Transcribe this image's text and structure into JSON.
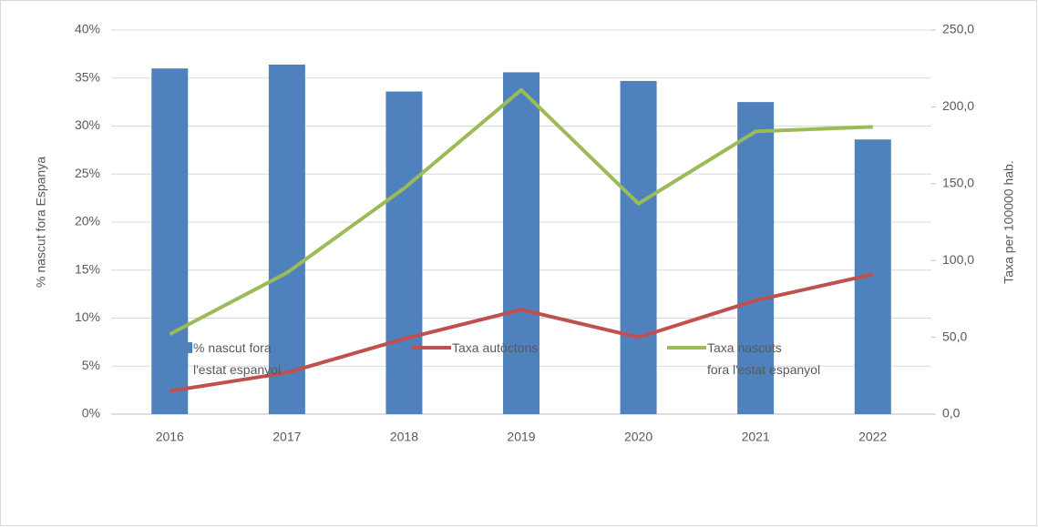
{
  "chart_data": {
    "type": "bar",
    "categories": [
      "2016",
      "2017",
      "2018",
      "2019",
      "2020",
      "2021",
      "2022"
    ],
    "y_label": "% nascut fora Espanya",
    "y2_label": "Taxa per 100000 hab.",
    "ylim": [
      0,
      40
    ],
    "yticks": [
      {
        "value": 0,
        "label": "0%"
      },
      {
        "value": 5,
        "label": "5%"
      },
      {
        "value": 10,
        "label": "10%"
      },
      {
        "value": 15,
        "label": "15%"
      },
      {
        "value": 20,
        "label": "20%"
      },
      {
        "value": 25,
        "label": "25%"
      },
      {
        "value": 30,
        "label": "30%"
      },
      {
        "value": 35,
        "label": "35%"
      },
      {
        "value": 40,
        "label": "40%"
      }
    ],
    "y2lim": [
      0,
      250
    ],
    "y2ticks": [
      {
        "value": 0,
        "label": "0,0"
      },
      {
        "value": 50,
        "label": "50,0"
      },
      {
        "value": 100,
        "label": "100,0"
      },
      {
        "value": 150,
        "label": "150,0"
      },
      {
        "value": 200,
        "label": "200,0"
      },
      {
        "value": 250,
        "label": "250,0"
      }
    ],
    "grid": true,
    "legend": "bottom",
    "series": [
      {
        "name": "% nascut fora\nl'estat espanyol",
        "type": "bar",
        "color": "#4f81bd",
        "values": [
          36.0,
          36.4,
          33.6,
          35.6,
          34.7,
          32.5,
          28.6
        ]
      },
      {
        "name": "Taxa autòctons",
        "type": "line",
        "axis": "y2",
        "color": "#c0504d",
        "values": [
          15,
          27,
          49,
          68,
          50,
          74,
          91
        ]
      },
      {
        "name": "Taxa nascuts\nfora l'estat espanyol",
        "type": "line",
        "axis": "y2",
        "color": "#9bbb59",
        "values": [
          52,
          92,
          147,
          211,
          137,
          184,
          187
        ]
      }
    ]
  }
}
